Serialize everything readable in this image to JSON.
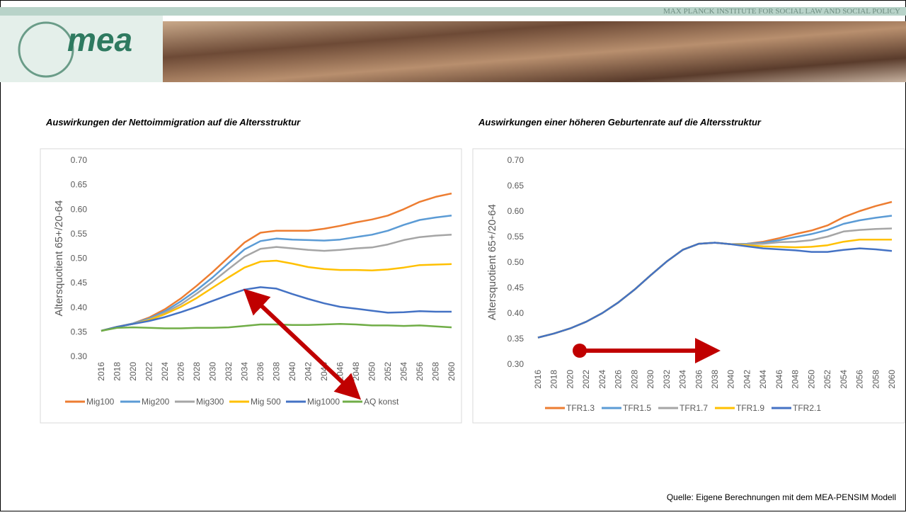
{
  "header": {
    "institute": "MAX PLANCK INSTITUTE FOR SOCIAL LAW AND SOCIAL POLICY",
    "logo": "mea"
  },
  "source": "Quelle: Eigene Berechnungen mit dem MEA-PENSIM Modell",
  "chart_data": [
    {
      "type": "line",
      "title": "Auswirkungen der Nettoimmigration auf die Altersstruktur",
      "y_label": "Altersquotient 65+/20-64",
      "categories": [
        "2016",
        "2018",
        "2020",
        "2022",
        "2024",
        "2026",
        "2028",
        "2030",
        "2032",
        "2034",
        "2036",
        "2038",
        "2040",
        "2042",
        "2044",
        "2046",
        "2048",
        "2050",
        "2052",
        "2054",
        "2056",
        "2058",
        "2060"
      ],
      "ylim": [
        0.3,
        0.7
      ],
      "yticks": [
        {
          "value": 0.3,
          "label": "0.30"
        },
        {
          "value": 0.35,
          "label": "0.35"
        },
        {
          "value": 0.4,
          "label": "0.40"
        },
        {
          "value": 0.45,
          "label": "0.45"
        },
        {
          "value": 0.5,
          "label": "0.50"
        },
        {
          "value": 0.55,
          "label": "0.55"
        },
        {
          "value": 0.6,
          "label": "0.60"
        },
        {
          "value": 0.65,
          "label": "0.65"
        },
        {
          "value": 0.7,
          "label": "0.70"
        }
      ],
      "grid": false,
      "legend": "bottom",
      "series": [
        {
          "name": "Mig100",
          "color": "#ed7d31",
          "values": [
            0.352,
            0.36,
            0.367,
            0.379,
            0.396,
            0.418,
            0.444,
            0.472,
            0.502,
            0.532,
            0.552,
            0.556,
            0.556,
            0.556,
            0.56,
            0.566,
            0.573,
            0.579,
            0.587,
            0.6,
            0.615,
            0.625,
            0.632
          ]
        },
        {
          "name": "Mig200",
          "color": "#5b9bd5",
          "values": [
            0.352,
            0.36,
            0.367,
            0.377,
            0.392,
            0.412,
            0.435,
            0.461,
            0.49,
            0.518,
            0.535,
            0.54,
            0.538,
            0.537,
            0.536,
            0.538,
            0.543,
            0.548,
            0.556,
            0.568,
            0.578,
            0.583,
            0.587
          ]
        },
        {
          "name": "Mig300",
          "color": "#a5a5a5",
          "values": [
            0.352,
            0.36,
            0.366,
            0.375,
            0.389,
            0.406,
            0.428,
            0.452,
            0.478,
            0.503,
            0.519,
            0.523,
            0.52,
            0.517,
            0.515,
            0.517,
            0.52,
            0.522,
            0.528,
            0.537,
            0.543,
            0.546,
            0.548
          ]
        },
        {
          "name": "Mig 500",
          "color": "#ffc000",
          "values": [
            0.352,
            0.36,
            0.366,
            0.374,
            0.386,
            0.401,
            0.419,
            0.44,
            0.461,
            0.481,
            0.493,
            0.495,
            0.489,
            0.482,
            0.478,
            0.476,
            0.476,
            0.475,
            0.477,
            0.481,
            0.486,
            0.487,
            0.488
          ]
        },
        {
          "name": "Mig1000",
          "color": "#4472c4",
          "values": [
            0.352,
            0.36,
            0.366,
            0.372,
            0.38,
            0.39,
            0.401,
            0.413,
            0.425,
            0.436,
            0.441,
            0.438,
            0.427,
            0.417,
            0.408,
            0.401,
            0.397,
            0.393,
            0.389,
            0.39,
            0.392,
            0.391,
            0.391
          ]
        },
        {
          "name": "AQ konst",
          "color": "#70ad47",
          "values": [
            0.352,
            0.358,
            0.359,
            0.358,
            0.357,
            0.357,
            0.358,
            0.358,
            0.359,
            0.362,
            0.365,
            0.365,
            0.364,
            0.364,
            0.365,
            0.366,
            0.365,
            0.363,
            0.363,
            0.362,
            0.363,
            0.361,
            0.359
          ]
        }
      ]
    },
    {
      "type": "line",
      "title": "Auswirkungen einer höheren Geburtenrate auf die Altersstruktur",
      "y_label": "Altersquotient 65+/20-64",
      "categories": [
        "2016",
        "2018",
        "2020",
        "2022",
        "2024",
        "2026",
        "2028",
        "2030",
        "2032",
        "2034",
        "2036",
        "2038",
        "2040",
        "2042",
        "2044",
        "2046",
        "2048",
        "2050",
        "2052",
        "2054",
        "2056",
        "2058",
        "2060"
      ],
      "ylim": [
        0.3,
        0.7
      ],
      "yticks": [
        {
          "value": 0.3,
          "label": "0.30"
        },
        {
          "value": 0.35,
          "label": "0.35"
        },
        {
          "value": 0.4,
          "label": "0.40"
        },
        {
          "value": 0.45,
          "label": "0.45"
        },
        {
          "value": 0.5,
          "label": "0.50"
        },
        {
          "value": 0.55,
          "label": "0.55"
        },
        {
          "value": 0.6,
          "label": "0.60"
        },
        {
          "value": 0.65,
          "label": "0.65"
        },
        {
          "value": 0.7,
          "label": "0.70"
        }
      ],
      "grid": false,
      "legend": "bottom",
      "series": [
        {
          "name": "TFR1.3",
          "color": "#ed7d31",
          "values": [
            0.352,
            0.36,
            0.37,
            0.383,
            0.4,
            0.421,
            0.446,
            0.474,
            0.501,
            0.524,
            0.536,
            0.538,
            0.535,
            0.536,
            0.54,
            0.547,
            0.555,
            0.562,
            0.572,
            0.588,
            0.6,
            0.61,
            0.618
          ]
        },
        {
          "name": "TFR1.5",
          "color": "#5b9bd5",
          "values": [
            0.352,
            0.36,
            0.37,
            0.383,
            0.4,
            0.421,
            0.446,
            0.474,
            0.501,
            0.524,
            0.536,
            0.538,
            0.535,
            0.536,
            0.538,
            0.543,
            0.549,
            0.555,
            0.563,
            0.575,
            0.582,
            0.587,
            0.591
          ]
        },
        {
          "name": "TFR1.7",
          "color": "#a5a5a5",
          "values": [
            0.352,
            0.36,
            0.37,
            0.383,
            0.4,
            0.421,
            0.446,
            0.474,
            0.501,
            0.524,
            0.536,
            0.538,
            0.535,
            0.535,
            0.536,
            0.539,
            0.54,
            0.543,
            0.55,
            0.56,
            0.563,
            0.565,
            0.566
          ]
        },
        {
          "name": "TFR1.9",
          "color": "#ffc000",
          "values": [
            0.352,
            0.36,
            0.37,
            0.383,
            0.4,
            0.421,
            0.446,
            0.474,
            0.501,
            0.524,
            0.536,
            0.538,
            0.535,
            0.533,
            0.531,
            0.53,
            0.529,
            0.53,
            0.533,
            0.54,
            0.544,
            0.544,
            0.544
          ]
        },
        {
          "name": "TFR2.1",
          "color": "#4472c4",
          "values": [
            0.352,
            0.36,
            0.37,
            0.383,
            0.4,
            0.421,
            0.446,
            0.474,
            0.501,
            0.524,
            0.536,
            0.538,
            0.535,
            0.531,
            0.527,
            0.525,
            0.523,
            0.52,
            0.52,
            0.524,
            0.527,
            0.525,
            0.522
          ]
        }
      ]
    }
  ]
}
